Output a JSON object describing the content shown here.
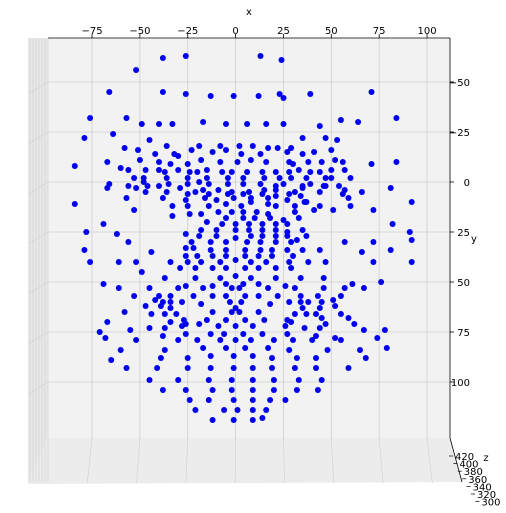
{
  "chart_data": {
    "type": "scatter",
    "title": "",
    "xlabel": "x",
    "ylabel": "y",
    "zlabel": "z",
    "view": "3d-front",
    "grid": true,
    "marker_color": "#0000ee",
    "xlim": [
      -98,
      112
    ],
    "ylim": [
      -72,
      128
    ],
    "x_ticks": [
      -75,
      -50,
      -25,
      0,
      25,
      50,
      75,
      100
    ],
    "x_tick_labels": [
      "−75",
      "−50",
      "−25",
      "0",
      "25",
      "50",
      "75",
      "100"
    ],
    "y_ticks": [
      -50,
      -25,
      0,
      25,
      50,
      75,
      100
    ],
    "y_tick_labels": [
      "−50",
      "−25",
      "0",
      "25",
      "50",
      "75",
      "100"
    ],
    "z_tick_labels": [
      "420",
      "400",
      "380",
      "360",
      "340",
      "320",
      "300"
    ],
    "points": [
      [
        -38,
        -62
      ],
      [
        -26,
        -63
      ],
      [
        13,
        -63
      ],
      [
        24,
        -61
      ],
      [
        -52,
        -56
      ],
      [
        -66,
        -45
      ],
      [
        -38,
        -45
      ],
      [
        -26,
        -44
      ],
      [
        -13,
        -43
      ],
      [
        -1,
        -43
      ],
      [
        12,
        -43
      ],
      [
        23,
        -44
      ],
      [
        25,
        -42
      ],
      [
        39,
        -44
      ],
      [
        71,
        -45
      ],
      [
        -76,
        -32
      ],
      [
        -57,
        -32
      ],
      [
        -49,
        -29
      ],
      [
        -40,
        -29
      ],
      [
        -33,
        -29
      ],
      [
        -17,
        -30
      ],
      [
        -5,
        -29
      ],
      [
        6,
        -29
      ],
      [
        16,
        -29
      ],
      [
        25,
        -29
      ],
      [
        44,
        -28
      ],
      [
        55,
        -31
      ],
      [
        64,
        -30
      ],
      [
        84,
        -32
      ],
      [
        -64,
        -24
      ],
      [
        -79,
        -22
      ],
      [
        -45,
        -21
      ],
      [
        -36,
        -18
      ],
      [
        -19,
        -18
      ],
      [
        -8,
        -18
      ],
      [
        2,
        -18
      ],
      [
        9,
        -18
      ],
      [
        22,
        -17
      ],
      [
        29,
        -17
      ],
      [
        35,
        -22
      ],
      [
        47,
        -22
      ],
      [
        53,
        -21
      ],
      [
        -58,
        -17
      ],
      [
        -51,
        -16
      ],
      [
        -42,
        -14
      ],
      [
        -32,
        -14
      ],
      [
        -30,
        -13
      ],
      [
        -23,
        -16
      ],
      [
        -12,
        -15
      ],
      [
        -5,
        -16
      ],
      [
        3,
        -14
      ],
      [
        13,
        -14
      ],
      [
        17,
        -17
      ],
      [
        27,
        -15
      ],
      [
        35,
        -14
      ],
      [
        41,
        -15
      ],
      [
        50,
        -16
      ],
      [
        -84,
        -8
      ],
      [
        -67,
        -10
      ],
      [
        -50,
        -11
      ],
      [
        -40,
        -10
      ],
      [
        -34,
        -9
      ],
      [
        -25,
        -9
      ],
      [
        -18,
        -11
      ],
      [
        -8,
        -10
      ],
      [
        1,
        -10
      ],
      [
        8,
        -11
      ],
      [
        16,
        -10
      ],
      [
        28,
        -10
      ],
      [
        30,
        -9
      ],
      [
        38,
        -10
      ],
      [
        45,
        -10
      ],
      [
        52,
        -11
      ],
      [
        56,
        -10
      ],
      [
        71,
        -9
      ],
      [
        84,
        -10
      ],
      [
        -60,
        -7
      ],
      [
        -56,
        -6
      ],
      [
        -47,
        -6
      ],
      [
        -40,
        -6
      ],
      [
        -37,
        -5
      ],
      [
        -30,
        -6
      ],
      [
        -24,
        -5
      ],
      [
        -20,
        -5
      ],
      [
        -15,
        -6
      ],
      [
        -7,
        -5
      ],
      [
        -2,
        -5
      ],
      [
        6,
        -5
      ],
      [
        14,
        -5
      ],
      [
        21,
        -5
      ],
      [
        28,
        -5
      ],
      [
        33,
        -6
      ],
      [
        39,
        -5
      ],
      [
        44,
        -5
      ],
      [
        50,
        -6
      ],
      [
        57,
        -6
      ],
      [
        -53,
        -2
      ],
      [
        -48,
        -2
      ],
      [
        -36,
        -2
      ],
      [
        -25,
        -2
      ],
      [
        -15,
        -2
      ],
      [
        -4,
        -2
      ],
      [
        4,
        -2
      ],
      [
        15,
        -2
      ],
      [
        23,
        -2
      ],
      [
        29,
        -2
      ],
      [
        37,
        -2
      ],
      [
        47,
        -2
      ],
      [
        50,
        -2
      ],
      [
        60,
        -2
      ],
      [
        -66,
        1
      ],
      [
        -56,
        2
      ],
      [
        -48,
        0
      ],
      [
        -40,
        2
      ],
      [
        -35,
        1
      ],
      [
        -25,
        1
      ],
      [
        -19,
        0
      ],
      [
        -14,
        1
      ],
      [
        -4,
        1
      ],
      [
        4,
        1
      ],
      [
        13,
        1
      ],
      [
        21,
        2
      ],
      [
        25,
        1
      ],
      [
        35,
        2
      ],
      [
        39,
        1
      ],
      [
        46,
        2
      ],
      [
        54,
        2
      ],
      [
        -67,
        3
      ],
      [
        -52,
        3
      ],
      [
        -46,
        2
      ],
      [
        -29,
        3
      ],
      [
        -21,
        5
      ],
      [
        -17,
        4
      ],
      [
        -9,
        4
      ],
      [
        -2,
        5
      ],
      [
        7,
        5
      ],
      [
        15,
        4
      ],
      [
        21,
        4
      ],
      [
        31,
        5
      ],
      [
        35,
        3
      ],
      [
        47,
        2
      ],
      [
        57,
        4
      ],
      [
        66,
        5
      ],
      [
        81,
        3
      ],
      [
        -47,
        5
      ],
      [
        -36,
        5
      ],
      [
        -25,
        6
      ],
      [
        -14,
        6
      ],
      [
        -4,
        6
      ],
      [
        4,
        6
      ],
      [
        14,
        6
      ],
      [
        21,
        7
      ],
      [
        28,
        6
      ],
      [
        34,
        7
      ],
      [
        44,
        5
      ],
      [
        56,
        6
      ],
      [
        -57,
        8
      ],
      [
        -38,
        8
      ],
      [
        -26,
        9
      ],
      [
        -16,
        8
      ],
      [
        -10,
        9
      ],
      [
        -1,
        8
      ],
      [
        8,
        8
      ],
      [
        17,
        8
      ],
      [
        27,
        9
      ],
      [
        36,
        10
      ],
      [
        59,
        8
      ],
      [
        -84,
        11
      ],
      [
        -33,
        12
      ],
      [
        -25,
        12
      ],
      [
        -14,
        12
      ],
      [
        -5,
        11
      ],
      [
        3,
        12
      ],
      [
        8,
        10
      ],
      [
        17,
        11
      ],
      [
        21,
        12
      ],
      [
        31,
        12
      ],
      [
        37,
        10
      ],
      [
        44,
        12
      ],
      [
        60,
        12
      ],
      [
        92,
        10
      ],
      [
        -53,
        14
      ],
      [
        -33,
        17
      ],
      [
        -24,
        16
      ],
      [
        -18,
        16
      ],
      [
        -9,
        15
      ],
      [
        -2,
        15
      ],
      [
        4,
        15
      ],
      [
        11,
        15
      ],
      [
        17,
        16
      ],
      [
        31,
        15
      ],
      [
        41,
        14
      ],
      [
        51,
        14
      ],
      [
        72,
        14
      ],
      [
        -5,
        18
      ],
      [
        4,
        18
      ],
      [
        10,
        18
      ],
      [
        18,
        18
      ],
      [
        25,
        19
      ],
      [
        33,
        18
      ],
      [
        -69,
        21
      ],
      [
        -15,
        20
      ],
      [
        -7,
        21
      ],
      [
        0,
        21
      ],
      [
        7,
        21
      ],
      [
        14,
        21
      ],
      [
        21,
        21
      ],
      [
        27,
        21
      ],
      [
        82,
        21
      ],
      [
        -78,
        25
      ],
      [
        -18,
        24
      ],
      [
        -10,
        24
      ],
      [
        0,
        24
      ],
      [
        7,
        24
      ],
      [
        14,
        24
      ],
      [
        21,
        24
      ],
      [
        27,
        25
      ],
      [
        35,
        24
      ],
      [
        91,
        25
      ],
      [
        -62,
        26
      ],
      [
        -26,
        26
      ],
      [
        -19,
        27
      ],
      [
        -10,
        27
      ],
      [
        0,
        28
      ],
      [
        8,
        27
      ],
      [
        14,
        27
      ],
      [
        21,
        27
      ],
      [
        27,
        27
      ],
      [
        37,
        27
      ],
      [
        -56,
        30
      ],
      [
        -23,
        30
      ],
      [
        -13,
        30
      ],
      [
        -5,
        30
      ],
      [
        6,
        30
      ],
      [
        13,
        30
      ],
      [
        21,
        30
      ],
      [
        29,
        30
      ],
      [
        32,
        29
      ],
      [
        57,
        30
      ],
      [
        72,
        30
      ],
      [
        92,
        29
      ],
      [
        -79,
        34
      ],
      [
        -44,
        35
      ],
      [
        -26,
        33
      ],
      [
        -22,
        33
      ],
      [
        -13,
        34
      ],
      [
        -5,
        34
      ],
      [
        5,
        34
      ],
      [
        13,
        34
      ],
      [
        19,
        34
      ],
      [
        27,
        34
      ],
      [
        35,
        34
      ],
      [
        44,
        34
      ],
      [
        66,
        35
      ],
      [
        81,
        34
      ],
      [
        -26,
        37
      ],
      [
        -20,
        37
      ],
      [
        -12,
        37
      ],
      [
        -5,
        37
      ],
      [
        5,
        37
      ],
      [
        12,
        37
      ],
      [
        19,
        37
      ],
      [
        30,
        37
      ],
      [
        -76,
        40
      ],
      [
        -61,
        40
      ],
      [
        -52,
        40
      ],
      [
        -34,
        40
      ],
      [
        -25,
        40
      ],
      [
        -18,
        40
      ],
      [
        -8,
        40
      ],
      [
        0,
        39
      ],
      [
        8,
        40
      ],
      [
        16,
        40
      ],
      [
        28,
        40
      ],
      [
        38,
        40
      ],
      [
        47,
        40
      ],
      [
        72,
        40
      ],
      [
        92,
        40
      ],
      [
        -29,
        43
      ],
      [
        -21,
        43
      ],
      [
        -12,
        43
      ],
      [
        -5,
        43
      ],
      [
        5,
        43
      ],
      [
        12,
        43
      ],
      [
        21,
        43
      ],
      [
        29,
        43
      ],
      [
        -49,
        45
      ],
      [
        -37,
        48
      ],
      [
        -21,
        48
      ],
      [
        -8,
        48
      ],
      [
        0,
        47
      ],
      [
        8,
        48
      ],
      [
        21,
        48
      ],
      [
        34,
        48
      ],
      [
        46,
        48
      ],
      [
        -69,
        51
      ],
      [
        -26,
        52
      ],
      [
        -12,
        52
      ],
      [
        -5,
        51
      ],
      [
        4,
        51
      ],
      [
        12,
        51
      ],
      [
        26,
        52
      ],
      [
        61,
        51
      ],
      [
        76,
        50
      ],
      [
        -61,
        53
      ],
      [
        -45,
        53
      ],
      [
        -30,
        53
      ],
      [
        -17,
        53
      ],
      [
        -2,
        53
      ],
      [
        2,
        53
      ],
      [
        17,
        53
      ],
      [
        31,
        53
      ],
      [
        46,
        53
      ],
      [
        57,
        53
      ],
      [
        67,
        53
      ],
      [
        -53,
        57
      ],
      [
        -40,
        57
      ],
      [
        -34,
        57
      ],
      [
        -22,
        57
      ],
      [
        -12,
        57
      ],
      [
        -5,
        57
      ],
      [
        5,
        57
      ],
      [
        12,
        57
      ],
      [
        22,
        57
      ],
      [
        34,
        57
      ],
      [
        43,
        57
      ],
      [
        55,
        57
      ],
      [
        -42,
        59
      ],
      [
        -38,
        60
      ],
      [
        -34,
        60
      ],
      [
        -28,
        60
      ],
      [
        -3,
        60
      ],
      [
        3,
        60
      ],
      [
        28,
        60
      ],
      [
        34,
        60
      ],
      [
        38,
        60
      ],
      [
        45,
        60
      ],
      [
        51,
        59
      ],
      [
        -47,
        62
      ],
      [
        -39,
        62
      ],
      [
        -34,
        63
      ],
      [
        -18,
        61
      ],
      [
        0,
        63
      ],
      [
        18,
        61
      ],
      [
        35,
        63
      ],
      [
        44,
        63
      ],
      [
        52,
        62
      ],
      [
        -58,
        65
      ],
      [
        -44,
        66
      ],
      [
        -37,
        66
      ],
      [
        -31,
        66
      ],
      [
        -12,
        65
      ],
      [
        -2,
        65
      ],
      [
        2,
        65
      ],
      [
        12,
        65
      ],
      [
        31,
        66
      ],
      [
        37,
        66
      ],
      [
        42,
        66
      ],
      [
        55,
        66
      ],
      [
        -27,
        69
      ],
      [
        -15,
        69
      ],
      [
        -5,
        69
      ],
      [
        5,
        69
      ],
      [
        15,
        69
      ],
      [
        27,
        69
      ],
      [
        45,
        68
      ],
      [
        59,
        68
      ],
      [
        -67,
        70
      ],
      [
        -34,
        70
      ],
      [
        -26,
        71
      ],
      [
        -19,
        71
      ],
      [
        29,
        70
      ],
      [
        47,
        71
      ],
      [
        62,
        71
      ],
      [
        -71,
        75
      ],
      [
        -55,
        74
      ],
      [
        -45,
        73
      ],
      [
        -37,
        73
      ],
      [
        -28,
        72
      ],
      [
        -9,
        72
      ],
      [
        0,
        72
      ],
      [
        9,
        72
      ],
      [
        26,
        72
      ],
      [
        36,
        73
      ],
      [
        44,
        73
      ],
      [
        67,
        74
      ],
      [
        78,
        74
      ],
      [
        -38,
        77
      ],
      [
        -26,
        76
      ],
      [
        -13,
        76
      ],
      [
        -6,
        76
      ],
      [
        4,
        76
      ],
      [
        14,
        76
      ],
      [
        27,
        76
      ],
      [
        42,
        77
      ],
      [
        52,
        78
      ],
      [
        -68,
        78
      ],
      [
        -52,
        79
      ],
      [
        -30,
        79
      ],
      [
        -20,
        79
      ],
      [
        -8,
        79
      ],
      [
        0,
        79
      ],
      [
        8,
        79
      ],
      [
        20,
        79
      ],
      [
        30,
        79
      ],
      [
        40,
        79
      ],
      [
        55,
        79
      ],
      [
        74,
        78
      ],
      [
        -60,
        84
      ],
      [
        -37,
        84
      ],
      [
        -17,
        83
      ],
      [
        -5,
        83
      ],
      [
        5,
        83
      ],
      [
        17,
        83
      ],
      [
        28,
        84
      ],
      [
        48,
        84
      ],
      [
        65,
        84
      ],
      [
        79,
        83
      ],
      [
        -65,
        89
      ],
      [
        -39,
        88
      ],
      [
        -25,
        88
      ],
      [
        -13,
        87
      ],
      [
        -1,
        87
      ],
      [
        9,
        87
      ],
      [
        19,
        88
      ],
      [
        32,
        88
      ],
      [
        42,
        88
      ],
      [
        68,
        88
      ],
      [
        -57,
        93
      ],
      [
        -41,
        93
      ],
      [
        -25,
        93
      ],
      [
        -13,
        93
      ],
      [
        -1,
        93
      ],
      [
        9,
        93
      ],
      [
        19,
        93
      ],
      [
        31,
        93
      ],
      [
        42,
        93
      ],
      [
        59,
        93
      ],
      [
        -45,
        99
      ],
      [
        -30,
        99
      ],
      [
        -14,
        99
      ],
      [
        -2,
        99
      ],
      [
        9,
        99
      ],
      [
        20,
        99
      ],
      [
        33,
        99
      ],
      [
        45,
        99
      ],
      [
        -38,
        104
      ],
      [
        -26,
        104
      ],
      [
        -12,
        104
      ],
      [
        -2,
        104
      ],
      [
        9,
        104
      ],
      [
        20,
        104
      ],
      [
        32,
        104
      ],
      [
        43,
        104
      ],
      [
        -24,
        109
      ],
      [
        -14,
        109
      ],
      [
        -1,
        109
      ],
      [
        9,
        109
      ],
      [
        18,
        109
      ],
      [
        26,
        109
      ],
      [
        -21,
        114
      ],
      [
        -6,
        114
      ],
      [
        1,
        114
      ],
      [
        9,
        114
      ],
      [
        16,
        114
      ],
      [
        -12,
        119
      ],
      [
        -1,
        119
      ],
      [
        9,
        119
      ],
      [
        14,
        118
      ]
    ]
  }
}
